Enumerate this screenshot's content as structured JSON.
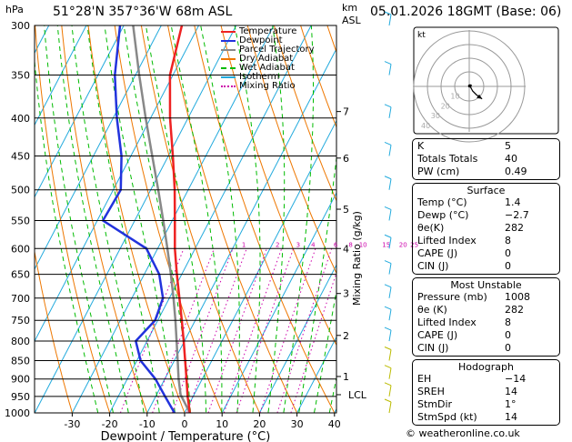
{
  "header": {
    "location": "51°28'N  357°36'W  68m  ASL",
    "valid": "05.01.2026  18GMT  (Base: 06)"
  },
  "chart_data": {
    "type": "skew-t log-p sounding",
    "y_axis_label": "hPa",
    "x_axis_label": "Dewpoint / Temperature (°C)",
    "km_axis_label": "km\nASL",
    "mixing_ratio_axis_label": "Mixing Ratio (g/kg)",
    "pressure_ticks": [
      300,
      350,
      400,
      450,
      500,
      550,
      600,
      650,
      700,
      750,
      800,
      850,
      900,
      950,
      1000
    ],
    "temperature_ticks": [
      -30,
      -20,
      -10,
      0,
      10,
      20,
      30,
      40
    ],
    "km_ticks": [
      {
        "label": "7",
        "p": 392
      },
      {
        "label": "6",
        "p": 453
      },
      {
        "label": "5",
        "p": 531
      },
      {
        "label": "4",
        "p": 600
      },
      {
        "label": "3",
        "p": 690
      },
      {
        "label": "2",
        "p": 786
      },
      {
        "label": "1",
        "p": 893
      }
    ],
    "lcl": {
      "label": "LCL",
      "p": 945
    },
    "mixing_ratio_labels": [
      {
        "label": "1",
        "p": 600,
        "t": -7
      },
      {
        "label": "2",
        "p": 600,
        "t": 2
      },
      {
        "label": "3",
        "p": 600,
        "t": 7.5
      },
      {
        "label": "4",
        "p": 600,
        "t": 11.5
      },
      {
        "label": "6",
        "p": 600,
        "t": 17.5
      },
      {
        "label": "8",
        "p": 600,
        "t": 21.5
      },
      {
        "label": "10",
        "p": 600,
        "t": 24.8
      },
      {
        "label": "15",
        "p": 600,
        "t": 31
      },
      {
        "label": "20",
        "p": 600,
        "t": 35.5
      },
      {
        "label": "25",
        "p": 600,
        "t": 38.5
      }
    ],
    "temperature_profile": [
      {
        "p": 1000,
        "t": 1.4
      },
      {
        "p": 950,
        "t": -1.5
      },
      {
        "p": 900,
        "t": -4.2
      },
      {
        "p": 850,
        "t": -7.1
      },
      {
        "p": 800,
        "t": -10.2
      },
      {
        "p": 750,
        "t": -13.6
      },
      {
        "p": 700,
        "t": -17.3
      },
      {
        "p": 650,
        "t": -21.3
      },
      {
        "p": 600,
        "t": -25.4
      },
      {
        "p": 550,
        "t": -29.3
      },
      {
        "p": 500,
        "t": -33.6
      },
      {
        "p": 450,
        "t": -38.8
      },
      {
        "p": 400,
        "t": -44.8
      },
      {
        "p": 350,
        "t": -50.8
      },
      {
        "p": 300,
        "t": -54.5
      }
    ],
    "dewpoint_profile": [
      {
        "p": 1000,
        "t": -2.7
      },
      {
        "p": 950,
        "t": -7.5
      },
      {
        "p": 900,
        "t": -12.5
      },
      {
        "p": 850,
        "t": -19
      },
      {
        "p": 800,
        "t": -23
      },
      {
        "p": 750,
        "t": -20.7
      },
      {
        "p": 700,
        "t": -21.7
      },
      {
        "p": 650,
        "t": -26
      },
      {
        "p": 600,
        "t": -33
      },
      {
        "p": 550,
        "t": -48.5
      },
      {
        "p": 500,
        "t": -48
      },
      {
        "p": 450,
        "t": -52.5
      },
      {
        "p": 400,
        "t": -59
      },
      {
        "p": 350,
        "t": -65.5
      },
      {
        "p": 300,
        "t": -71
      }
    ],
    "parcel_profile": [
      {
        "p": 1000,
        "t": 1.4
      },
      {
        "p": 945,
        "t": -3.6
      },
      {
        "p": 900,
        "t": -6.3
      },
      {
        "p": 850,
        "t": -9.1
      },
      {
        "p": 800,
        "t": -12.1
      },
      {
        "p": 750,
        "t": -15.3
      },
      {
        "p": 700,
        "t": -18.9
      },
      {
        "p": 650,
        "t": -22.9
      },
      {
        "p": 600,
        "t": -27.4
      },
      {
        "p": 550,
        "t": -32.4
      },
      {
        "p": 500,
        "t": -38
      },
      {
        "p": 450,
        "t": -44.3
      },
      {
        "p": 400,
        "t": -51.3
      },
      {
        "p": 350,
        "t": -59
      },
      {
        "p": 300,
        "t": -67.5
      }
    ],
    "legend": [
      {
        "label": "Temperature",
        "color": "#ee2222",
        "style": "solid"
      },
      {
        "label": "Dewpoint",
        "color": "#2233dd",
        "style": "solid"
      },
      {
        "label": "Parcel Trajectory",
        "color": "#888888",
        "style": "solid"
      },
      {
        "label": "Dry Adiabat",
        "color": "#ee7700",
        "style": "solid"
      },
      {
        "label": "Wet Adiabat",
        "color": "#00bb00",
        "style": "dashed"
      },
      {
        "label": "Isotherm",
        "color": "#22aadd",
        "style": "solid"
      },
      {
        "label": "Mixing Ratio",
        "color": "#cc00aa",
        "style": "dotted"
      }
    ]
  },
  "hodograph": {
    "label": "kt",
    "ring_labels": [
      "10",
      "20",
      "30",
      "40"
    ],
    "hodo_points": [
      {
        "u": 0.2,
        "v": -0.2
      },
      {
        "u": 0.4,
        "v": 0.5
      },
      {
        "u": 0.7,
        "v": 0.4
      },
      {
        "u": 0.5,
        "v": -0.3
      },
      {
        "u": 1.2,
        "v": -1.6
      },
      {
        "u": 2.6,
        "v": -3.0
      },
      {
        "u": 3.6,
        "v": -3.6
      },
      {
        "u": 4.4,
        "v": -4.3
      }
    ]
  },
  "indices": [
    {
      "label": "K",
      "value": "5"
    },
    {
      "label": "Totals Totals",
      "value": "40"
    },
    {
      "label": "PW (cm)",
      "value": "0.49"
    }
  ],
  "surface": {
    "title": "Surface",
    "rows": [
      {
        "label": "Temp (°C)",
        "value": "1.4"
      },
      {
        "label": "Dewp (°C)",
        "value": "−2.7"
      },
      {
        "label": "θe(K)",
        "value": "282"
      },
      {
        "label": "Lifted Index",
        "value": "8"
      },
      {
        "label": "CAPE (J)",
        "value": "0"
      },
      {
        "label": "CIN (J)",
        "value": "0"
      }
    ]
  },
  "most_unstable": {
    "title": "Most Unstable",
    "rows": [
      {
        "label": "Pressure (mb)",
        "value": "1008"
      },
      {
        "label": "θe (K)",
        "value": "282"
      },
      {
        "label": "Lifted Index",
        "value": "8"
      },
      {
        "label": "CAPE (J)",
        "value": "0"
      },
      {
        "label": "CIN (J)",
        "value": "0"
      }
    ]
  },
  "hodograph_table": {
    "title": "Hodograph",
    "rows": [
      {
        "label": "EH",
        "value": "−14"
      },
      {
        "label": "SREH",
        "value": "14"
      },
      {
        "label": "StmDir",
        "value": "1°"
      },
      {
        "label": "StmSpd (kt)",
        "value": "14"
      }
    ]
  },
  "footer": {
    "logo": "© weatheronline.co.uk"
  },
  "colors": {
    "temperature": "#ee2222",
    "dewpoint": "#2233dd",
    "parcel": "#888888",
    "dry_adiabat": "#ee7700",
    "wet_adiabat": "#00bb00",
    "isotherm": "#22aadd",
    "mixing_ratio": "#cc00aa",
    "wind_barb": "#22aadd",
    "wind_barb_low": "#bbbb00"
  }
}
